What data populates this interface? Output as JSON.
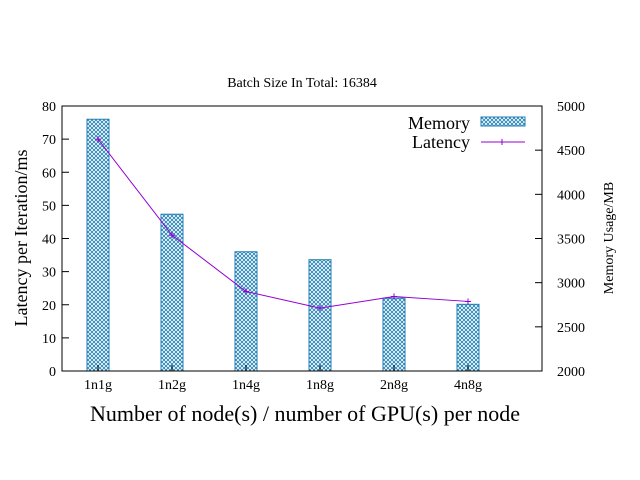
{
  "chart_data": {
    "type": "bar+line",
    "title": "Batch Size In Total: 16384",
    "xlabel": "Number of node(s) / number of GPU(s) per node",
    "ylabel_left": "Latency per Iteration/ms",
    "ylabel_right": "Memory Usage/MB",
    "categories": [
      "1n1g",
      "1n2g",
      "1n4g",
      "1n8g",
      "2n8g",
      "4n8g"
    ],
    "y_left": {
      "lim": [
        0,
        80
      ],
      "ticks": [
        "0",
        "10",
        "20",
        "30",
        "40",
        "50",
        "60",
        "70",
        "80"
      ]
    },
    "y_right": {
      "lim": [
        2000,
        5000
      ],
      "ticks": [
        "2000",
        "2500",
        "3000",
        "3500",
        "4000",
        "4500",
        "5000"
      ]
    },
    "grid": false,
    "legend_position": "top-right",
    "series": [
      {
        "name": "Memory",
        "type": "bar",
        "axis": "right",
        "color": "#1f7fb4",
        "values": [
          4850,
          3775,
          3350,
          3260,
          2825,
          2755
        ]
      },
      {
        "name": "Latency",
        "type": "line",
        "axis": "left",
        "color": "#9400d3",
        "values": [
          70,
          41,
          24,
          19,
          22.5,
          21
        ]
      }
    ]
  }
}
